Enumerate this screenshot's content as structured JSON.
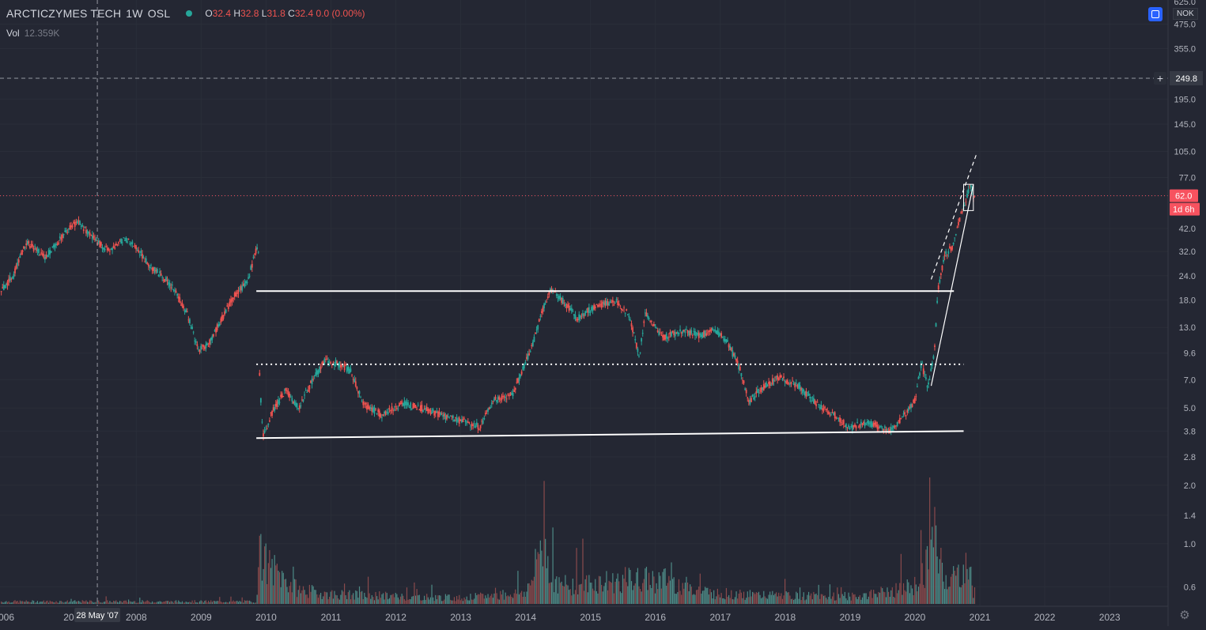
{
  "legend": {
    "symbol": "ARCTICZYMES TECH",
    "interval": "1W",
    "exchange": "OSL",
    "open_label": "O",
    "open": "32.4",
    "high_label": "H",
    "high": "32.8",
    "low_label": "L",
    "low": "31.8",
    "close_label": "C",
    "close": "32.4",
    "change": "0.0 (0.00%)",
    "vol_label": "Vol",
    "vol_value": "12.359K"
  },
  "price_axis": {
    "currency": "NOK",
    "top_cut": "625.0",
    "crosshair_price": "249.8",
    "last_price": "62.0",
    "countdown": "1d 6h"
  },
  "time_axis": {
    "crosshair_date": "28 May '07",
    "first_label": "006",
    "cut_label": "200"
  },
  "colors": {
    "background": "#242733",
    "up": "#26a69a",
    "down": "#ef5350",
    "drawing": "#ffffff",
    "last_price": "#f7525f",
    "crosshair_label": "#363a45"
  },
  "icons": [
    "sync-icon",
    "settings-icon",
    "plus-icon"
  ],
  "chart_data": {
    "type": "candlestick",
    "scale": "log",
    "interval": "1W",
    "ylim": [
      0.5,
      625
    ],
    "y_ticks": [
      475.0,
      355.0,
      249.8,
      195.0,
      145.0,
      105.0,
      77.0,
      62.0,
      42.0,
      32.0,
      24.0,
      18.0,
      13.0,
      9.6,
      7.0,
      5.0,
      3.8,
      2.8,
      2.0,
      1.4,
      1.0,
      0.6
    ],
    "x_ticks": [
      "2008",
      "2009",
      "2010",
      "2011",
      "2012",
      "2013",
      "2014",
      "2015",
      "2016",
      "2017",
      "2018",
      "2019",
      "2020",
      "2021",
      "2022",
      "2023"
    ],
    "xlim": [
      2005.9,
      2023.9
    ],
    "price_path": [
      [
        2005.9,
        20
      ],
      [
        2006.1,
        24
      ],
      [
        2006.3,
        36
      ],
      [
        2006.6,
        30
      ],
      [
        2006.9,
        40
      ],
      [
        2007.1,
        46
      ],
      [
        2007.3,
        38
      ],
      [
        2007.6,
        32
      ],
      [
        2007.8,
        37
      ],
      [
        2008.0,
        34
      ],
      [
        2008.2,
        27
      ],
      [
        2008.4,
        24
      ],
      [
        2008.6,
        20
      ],
      [
        2008.8,
        15
      ],
      [
        2008.95,
        10
      ],
      [
        2009.1,
        10.5
      ],
      [
        2009.3,
        14
      ],
      [
        2009.5,
        19
      ],
      [
        2009.7,
        22
      ],
      [
        2009.82,
        30
      ],
      [
        2009.88,
        36
      ],
      [
        2009.9,
        7.5
      ],
      [
        2009.95,
        3.5
      ],
      [
        2010.1,
        4.8
      ],
      [
        2010.3,
        6.2
      ],
      [
        2010.5,
        5.0
      ],
      [
        2010.7,
        6.8
      ],
      [
        2010.9,
        8.7
      ],
      [
        2011.1,
        8.5
      ],
      [
        2011.3,
        7.8
      ],
      [
        2011.5,
        5.2
      ],
      [
        2011.8,
        4.6
      ],
      [
        2012.1,
        5.3
      ],
      [
        2012.4,
        5.0
      ],
      [
        2012.7,
        4.6
      ],
      [
        2013.0,
        4.3
      ],
      [
        2013.3,
        4.0
      ],
      [
        2013.5,
        5.5
      ],
      [
        2013.8,
        5.9
      ],
      [
        2013.95,
        7.8
      ],
      [
        2014.1,
        10.5
      ],
      [
        2014.3,
        17.5
      ],
      [
        2014.4,
        20.5
      ],
      [
        2014.6,
        17.5
      ],
      [
        2014.8,
        14.5
      ],
      [
        2015.1,
        17.0
      ],
      [
        2015.4,
        17.5
      ],
      [
        2015.6,
        15.0
      ],
      [
        2015.75,
        9.2
      ],
      [
        2015.85,
        15.5
      ],
      [
        2016.1,
        11.5
      ],
      [
        2016.4,
        12.5
      ],
      [
        2016.7,
        11.8
      ],
      [
        2016.9,
        12.8
      ],
      [
        2017.1,
        11.0
      ],
      [
        2017.3,
        8.0
      ],
      [
        2017.45,
        5.4
      ],
      [
        2017.6,
        6.2
      ],
      [
        2017.9,
        7.2
      ],
      [
        2018.2,
        6.5
      ],
      [
        2018.5,
        5.2
      ],
      [
        2018.8,
        4.5
      ],
      [
        2019.0,
        3.9
      ],
      [
        2019.2,
        4.2
      ],
      [
        2019.4,
        4.1
      ],
      [
        2019.6,
        3.8
      ],
      [
        2019.8,
        4.4
      ],
      [
        2020.0,
        5.5
      ],
      [
        2020.1,
        8.5
      ],
      [
        2020.2,
        6.4
      ],
      [
        2020.3,
        9.5
      ],
      [
        2020.35,
        20
      ],
      [
        2020.45,
        30
      ],
      [
        2020.6,
        35
      ],
      [
        2020.7,
        48
      ],
      [
        2020.8,
        62
      ],
      [
        2020.85,
        72
      ],
      [
        2020.9,
        62
      ]
    ],
    "volume_path": [
      [
        2005.9,
        0.02
      ],
      [
        2009.85,
        0.02
      ],
      [
        2009.9,
        1.0
      ],
      [
        2009.95,
        0.35
      ],
      [
        2010.2,
        0.25
      ],
      [
        2010.5,
        0.12
      ],
      [
        2011.0,
        0.08
      ],
      [
        2013.0,
        0.05
      ],
      [
        2014.0,
        0.1
      ],
      [
        2014.25,
        0.6
      ],
      [
        2014.5,
        0.15
      ],
      [
        2015.6,
        0.2
      ],
      [
        2016.2,
        0.2
      ],
      [
        2017.0,
        0.08
      ],
      [
        2019.0,
        0.06
      ],
      [
        2020.0,
        0.15
      ],
      [
        2020.3,
        0.55
      ],
      [
        2020.5,
        0.2
      ],
      [
        2020.85,
        0.3
      ],
      [
        2020.9,
        0.1
      ]
    ],
    "annotations": [
      {
        "kind": "hline",
        "style": "solid",
        "x": [
          2009.85,
          2020.6
        ],
        "y": 20.0
      },
      {
        "kind": "hline",
        "style": "dotted",
        "x": [
          2009.85,
          2020.75
        ],
        "y": 8.4
      },
      {
        "kind": "trend",
        "style": "solid",
        "x": [
          2009.85,
          2020.75
        ],
        "y": [
          3.5,
          3.8
        ]
      },
      {
        "kind": "trend",
        "style": "solid",
        "x": [
          2020.25,
          2020.9
        ],
        "y": [
          6.5,
          71
        ]
      },
      {
        "kind": "trend",
        "style": "dashed",
        "x": [
          2020.25,
          2020.95
        ],
        "y": [
          23,
          102
        ]
      },
      {
        "kind": "box",
        "style": "solid",
        "x": [
          2020.75,
          2020.9
        ],
        "y": [
          52,
          71
        ]
      },
      {
        "kind": "crosshair",
        "style": "dashed",
        "x": 2007.4,
        "y": 249.8
      }
    ]
  }
}
